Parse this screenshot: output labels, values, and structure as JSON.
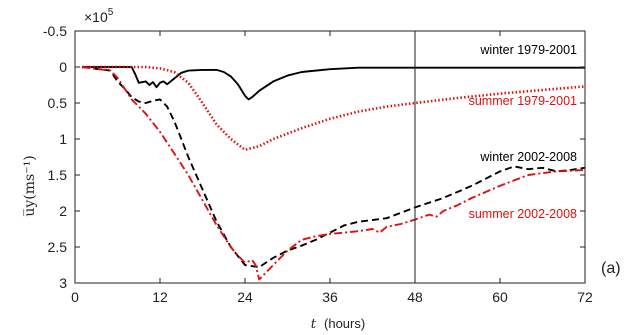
{
  "chart_data": {
    "type": "line",
    "xlabel_symbol": "t",
    "xlabel_unit": "(hours)",
    "ylabel": "u̅y(ms⁻¹)",
    "y_multiplier": "×10",
    "y_multiplier_exp": "5",
    "panel_label": "(a)",
    "xlim": [
      0,
      72
    ],
    "ylim": [
      -0.5,
      3
    ],
    "y_reversed": true,
    "xticks": [
      0,
      12,
      24,
      36,
      48,
      60,
      72
    ],
    "yticks": [
      -0.5,
      0,
      0.5,
      1,
      1.5,
      2,
      2.5,
      3
    ],
    "ytick_labels": [
      "-0.5",
      "0",
      "0.5",
      "1",
      "1.5",
      "2",
      "2.5",
      "3"
    ],
    "vline_x": 48,
    "series": [
      {
        "name": "winter 1979-2001",
        "color": "#000000",
        "style": "solid",
        "x": [
          1,
          8,
          8.5,
          9,
          10,
          10.5,
          11,
          11.5,
          12,
          12.5,
          13,
          14,
          15,
          16,
          18,
          20,
          21,
          22,
          23,
          24,
          24.5,
          25,
          26,
          28,
          30,
          32,
          36,
          40,
          48,
          60,
          72
        ],
        "y": [
          0,
          0,
          0.1,
          0.22,
          0.2,
          0.25,
          0.21,
          0.28,
          0.22,
          0.2,
          0.24,
          0.16,
          0.08,
          0.05,
          0.04,
          0.04,
          0.07,
          0.13,
          0.24,
          0.4,
          0.45,
          0.42,
          0.33,
          0.2,
          0.12,
          0.07,
          0.03,
          0.01,
          0.01,
          0.01,
          0.01
        ]
      },
      {
        "name": "summer 1979-2001",
        "color": "#dd1111",
        "style": "dotted",
        "x": [
          1,
          10,
          12,
          14,
          16,
          18,
          20,
          22,
          24,
          26,
          28,
          32,
          36,
          40,
          44,
          48,
          54,
          60,
          66,
          72
        ],
        "y": [
          0,
          0,
          0.02,
          0.07,
          0.22,
          0.5,
          0.8,
          1.0,
          1.15,
          1.1,
          1.0,
          0.85,
          0.72,
          0.62,
          0.55,
          0.5,
          0.43,
          0.37,
          0.32,
          0.27
        ]
      },
      {
        "name": "winter 2002-2008",
        "color": "#000000",
        "style": "dashed",
        "x": [
          1,
          5,
          6,
          7,
          8,
          9,
          10,
          11,
          12,
          13,
          14,
          15,
          16,
          18,
          20,
          22,
          24,
          26,
          28,
          30,
          32,
          34,
          36,
          38,
          40,
          44,
          48,
          52,
          56,
          60,
          62,
          64,
          66,
          68,
          70,
          72
        ],
        "y": [
          0,
          0.05,
          0.2,
          0.3,
          0.42,
          0.48,
          0.5,
          0.47,
          0.45,
          0.55,
          0.75,
          1.0,
          1.25,
          1.7,
          2.15,
          2.5,
          2.75,
          2.78,
          2.65,
          2.55,
          2.48,
          2.4,
          2.3,
          2.2,
          2.15,
          2.1,
          1.95,
          1.82,
          1.65,
          1.45,
          1.38,
          1.42,
          1.4,
          1.45,
          1.43,
          1.4
        ]
      },
      {
        "name": "summer 2002-2008",
        "color": "#dd1111",
        "style": "dashdot",
        "x": [
          1,
          5,
          6,
          7,
          8,
          9,
          10,
          12,
          14,
          16,
          18,
          20,
          22,
          23,
          24,
          25,
          25.5,
          26,
          27,
          28,
          30,
          32,
          34,
          36,
          38,
          40,
          42,
          43,
          44,
          46,
          48,
          50,
          51,
          52,
          54,
          56,
          60,
          64,
          68,
          72
        ],
        "y": [
          0,
          0.05,
          0.15,
          0.3,
          0.45,
          0.55,
          0.65,
          0.9,
          1.2,
          1.5,
          1.85,
          2.2,
          2.5,
          2.62,
          2.72,
          2.68,
          2.75,
          2.95,
          2.85,
          2.75,
          2.55,
          2.4,
          2.35,
          2.32,
          2.3,
          2.28,
          2.25,
          2.3,
          2.22,
          2.18,
          2.12,
          2.05,
          2.08,
          2.0,
          1.92,
          1.82,
          1.65,
          1.5,
          1.45,
          1.43
        ]
      }
    ]
  }
}
